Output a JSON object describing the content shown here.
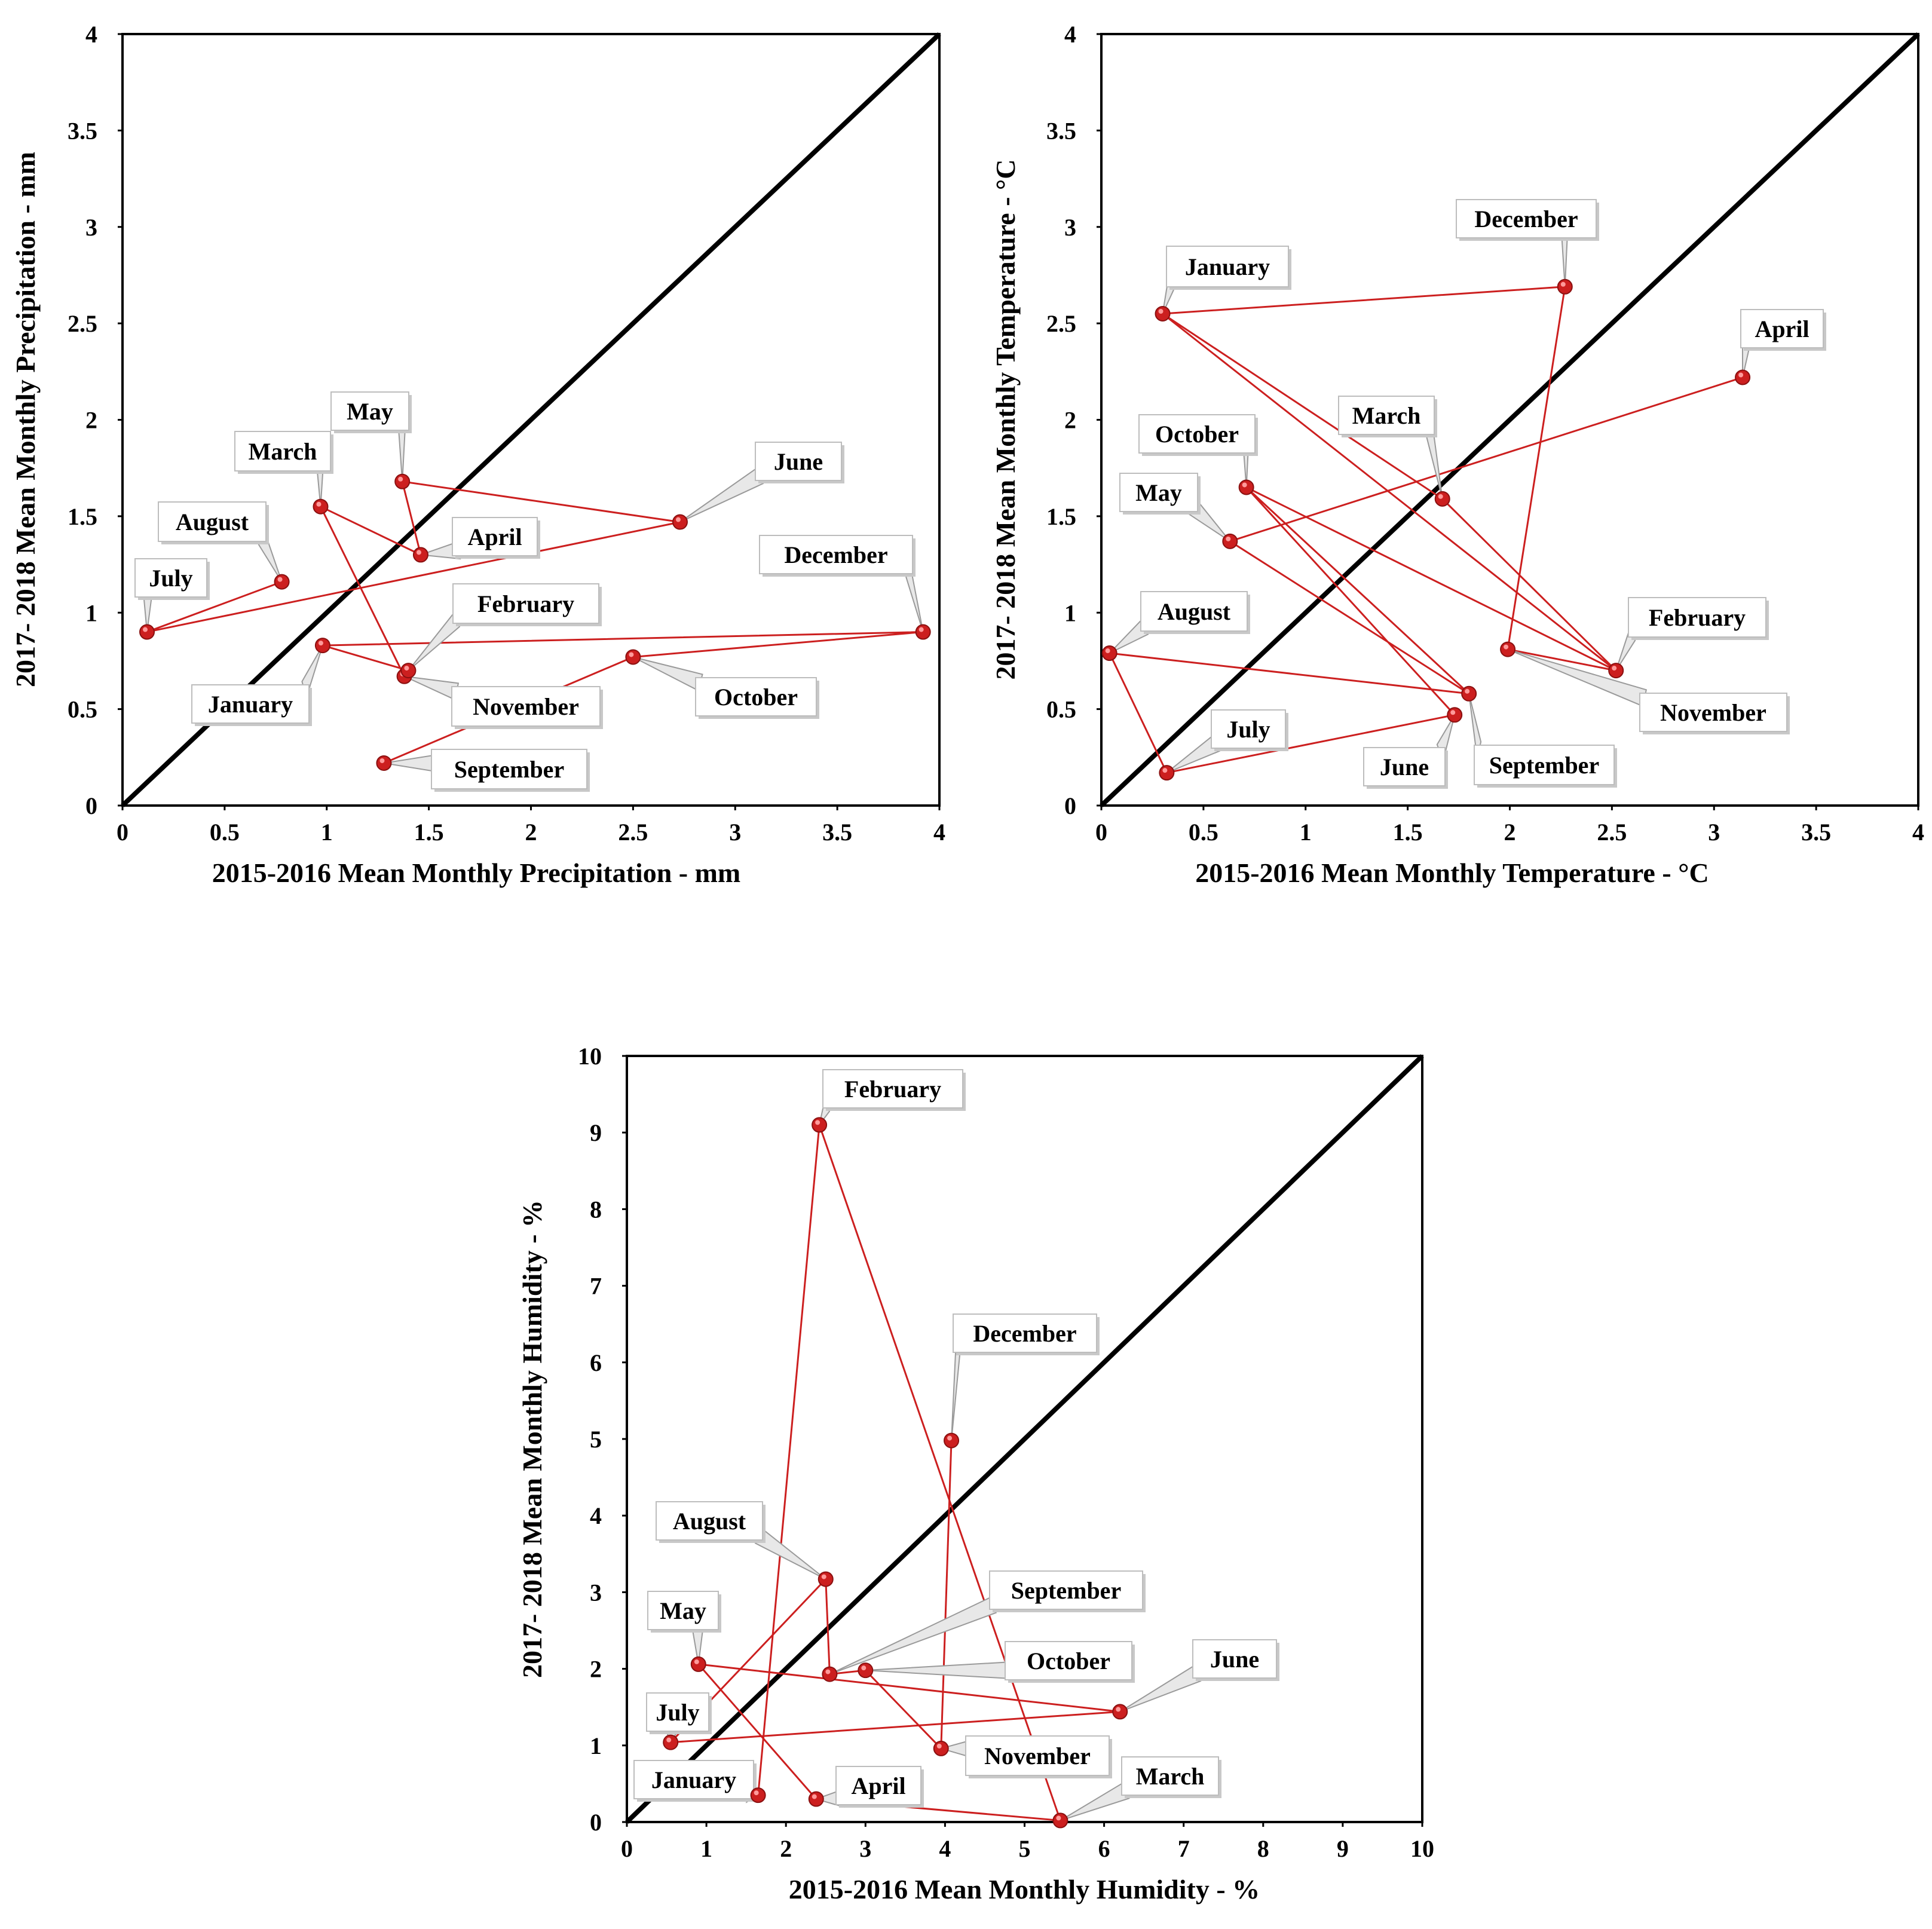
{
  "chart_data": [
    {
      "type": "scatter",
      "title": "",
      "xlabel": "2015-2016 Mean Monthly Precipitation - mm",
      "ylabel": "2017- 2018 Mean Monthly Precipitation - mm",
      "xlim": [
        0,
        4
      ],
      "ylim": [
        0,
        4
      ],
      "ticks": [
        "0",
        "0.5",
        "1",
        "1.5",
        "2",
        "2.5",
        "3",
        "3.5",
        "4"
      ],
      "reference_line": "1:1",
      "series_color": "#cc1f1f",
      "points": [
        {
          "label": "July",
          "x": 0.12,
          "y": 0.9
        },
        {
          "label": "August",
          "x": 0.78,
          "y": 1.16
        },
        {
          "label": "July",
          "x": 0.12,
          "y": 0.9
        },
        {
          "label": "June",
          "x": 2.73,
          "y": 1.47
        },
        {
          "label": "May",
          "x": 1.37,
          "y": 1.68
        },
        {
          "label": "April",
          "x": 1.46,
          "y": 1.3
        },
        {
          "label": "March",
          "x": 0.97,
          "y": 1.55
        },
        {
          "label": "November",
          "x": 1.38,
          "y": 0.67
        },
        {
          "label": "February",
          "x": 1.4,
          "y": 0.7
        },
        {
          "label": "January",
          "x": 0.98,
          "y": 0.83
        },
        {
          "label": "December",
          "x": 3.92,
          "y": 0.9
        },
        {
          "label": "October",
          "x": 2.5,
          "y": 0.77
        },
        {
          "label": "September",
          "x": 1.28,
          "y": 0.22
        }
      ],
      "callouts": [
        {
          "text": "July",
          "month": "July"
        },
        {
          "text": "August",
          "month": "August"
        },
        {
          "text": "March",
          "month": "March"
        },
        {
          "text": "May",
          "month": "May"
        },
        {
          "text": "April",
          "month": "April"
        },
        {
          "text": "June",
          "month": "June"
        },
        {
          "text": "December",
          "month": "December"
        },
        {
          "text": "February",
          "month": "February"
        },
        {
          "text": "January",
          "month": "January"
        },
        {
          "text": "November",
          "month": "November"
        },
        {
          "text": "October",
          "month": "October"
        },
        {
          "text": "September",
          "month": "September"
        }
      ]
    },
    {
      "type": "scatter",
      "title": "",
      "xlabel": "2015-2016 Mean Monthly Temperature - °C",
      "ylabel": "2017- 2018 Mean Monthly Temperature - °C",
      "xlim": [
        0,
        4
      ],
      "ylim": [
        0,
        4
      ],
      "ticks": [
        "0",
        "0.5",
        "1",
        "1.5",
        "2",
        "2.5",
        "3",
        "3.5",
        "4"
      ],
      "reference_line": "1:1",
      "series_color": "#cc1f1f",
      "points": [
        {
          "label": "January",
          "x": 0.3,
          "y": 2.55
        },
        {
          "label": "December",
          "x": 2.27,
          "y": 2.69
        },
        {
          "label": "November",
          "x": 1.99,
          "y": 0.81
        },
        {
          "label": "February",
          "x": 2.52,
          "y": 0.7
        },
        {
          "label": "January",
          "x": 0.3,
          "y": 2.55
        },
        {
          "label": "March",
          "x": 1.67,
          "y": 1.59
        },
        {
          "label": "February",
          "x": 2.52,
          "y": 0.7
        },
        {
          "label": "October",
          "x": 0.71,
          "y": 1.65
        },
        {
          "label": "June",
          "x": 1.73,
          "y": 0.47
        },
        {
          "label": "July",
          "x": 0.32,
          "y": 0.17
        },
        {
          "label": "August",
          "x": 0.04,
          "y": 0.79
        },
        {
          "label": "September",
          "x": 1.8,
          "y": 0.58
        },
        {
          "label": "October",
          "x": 0.71,
          "y": 1.65
        },
        {
          "label": "September",
          "x": 1.8,
          "y": 0.58
        },
        {
          "label": "May",
          "x": 0.63,
          "y": 1.37
        },
        {
          "label": "April",
          "x": 3.14,
          "y": 2.22
        }
      ],
      "callouts": [
        {
          "text": "January",
          "month": "January"
        },
        {
          "text": "December",
          "month": "December"
        },
        {
          "text": "April",
          "month": "April"
        },
        {
          "text": "March",
          "month": "March"
        },
        {
          "text": "October",
          "month": "October"
        },
        {
          "text": "May",
          "month": "May"
        },
        {
          "text": "August",
          "month": "August"
        },
        {
          "text": "February",
          "month": "February"
        },
        {
          "text": "November",
          "month": "November"
        },
        {
          "text": "July",
          "month": "July"
        },
        {
          "text": "June",
          "month": "June"
        },
        {
          "text": "September",
          "month": "September"
        }
      ]
    },
    {
      "type": "scatter",
      "title": "",
      "xlabel": "2015-2016 Mean Monthly Humidity - %",
      "ylabel": "2017- 2018 Mean Monthly Humidity - %",
      "xlim": [
        0,
        10
      ],
      "ylim": [
        0,
        10
      ],
      "ticks": [
        "0",
        "1",
        "2",
        "3",
        "4",
        "5",
        "6",
        "7",
        "8",
        "9",
        "10"
      ],
      "reference_line": "1:1",
      "series_color": "#cc1f1f",
      "points": [
        {
          "label": "January",
          "x": 1.65,
          "y": 0.35
        },
        {
          "label": "February",
          "x": 2.42,
          "y": 9.1
        },
        {
          "label": "March",
          "x": 5.45,
          "y": 0.02
        },
        {
          "label": "April",
          "x": 2.38,
          "y": 0.3
        },
        {
          "label": "May",
          "x": 0.9,
          "y": 2.06
        },
        {
          "label": "June",
          "x": 6.2,
          "y": 1.44
        },
        {
          "label": "July",
          "x": 0.55,
          "y": 1.04
        },
        {
          "label": "August",
          "x": 2.5,
          "y": 3.17
        },
        {
          "label": "September",
          "x": 2.55,
          "y": 1.93
        },
        {
          "label": "October",
          "x": 3.0,
          "y": 1.98
        },
        {
          "label": "November",
          "x": 3.95,
          "y": 0.96
        },
        {
          "label": "December",
          "x": 4.08,
          "y": 4.98
        }
      ],
      "segments": [
        [
          "January",
          "February"
        ],
        [
          "February",
          "March"
        ],
        [
          "March",
          "April"
        ],
        [
          "April",
          "May"
        ],
        [
          "May",
          "June"
        ],
        [
          "June",
          "July"
        ],
        [
          "July",
          "August"
        ],
        [
          "August",
          "September"
        ],
        [
          "September",
          "October"
        ],
        [
          "October",
          "November"
        ],
        [
          "November",
          "December"
        ]
      ],
      "callouts": [
        {
          "text": "February",
          "month": "February"
        },
        {
          "text": "December",
          "month": "December"
        },
        {
          "text": "August",
          "month": "August"
        },
        {
          "text": "September",
          "month": "September"
        },
        {
          "text": "May",
          "month": "May"
        },
        {
          "text": "October",
          "month": "October"
        },
        {
          "text": "June",
          "month": "June"
        },
        {
          "text": "July",
          "month": "July"
        },
        {
          "text": "November",
          "month": "November"
        },
        {
          "text": "January",
          "month": "January"
        },
        {
          "text": "April",
          "month": "April"
        },
        {
          "text": "March",
          "month": "March"
        }
      ]
    }
  ]
}
